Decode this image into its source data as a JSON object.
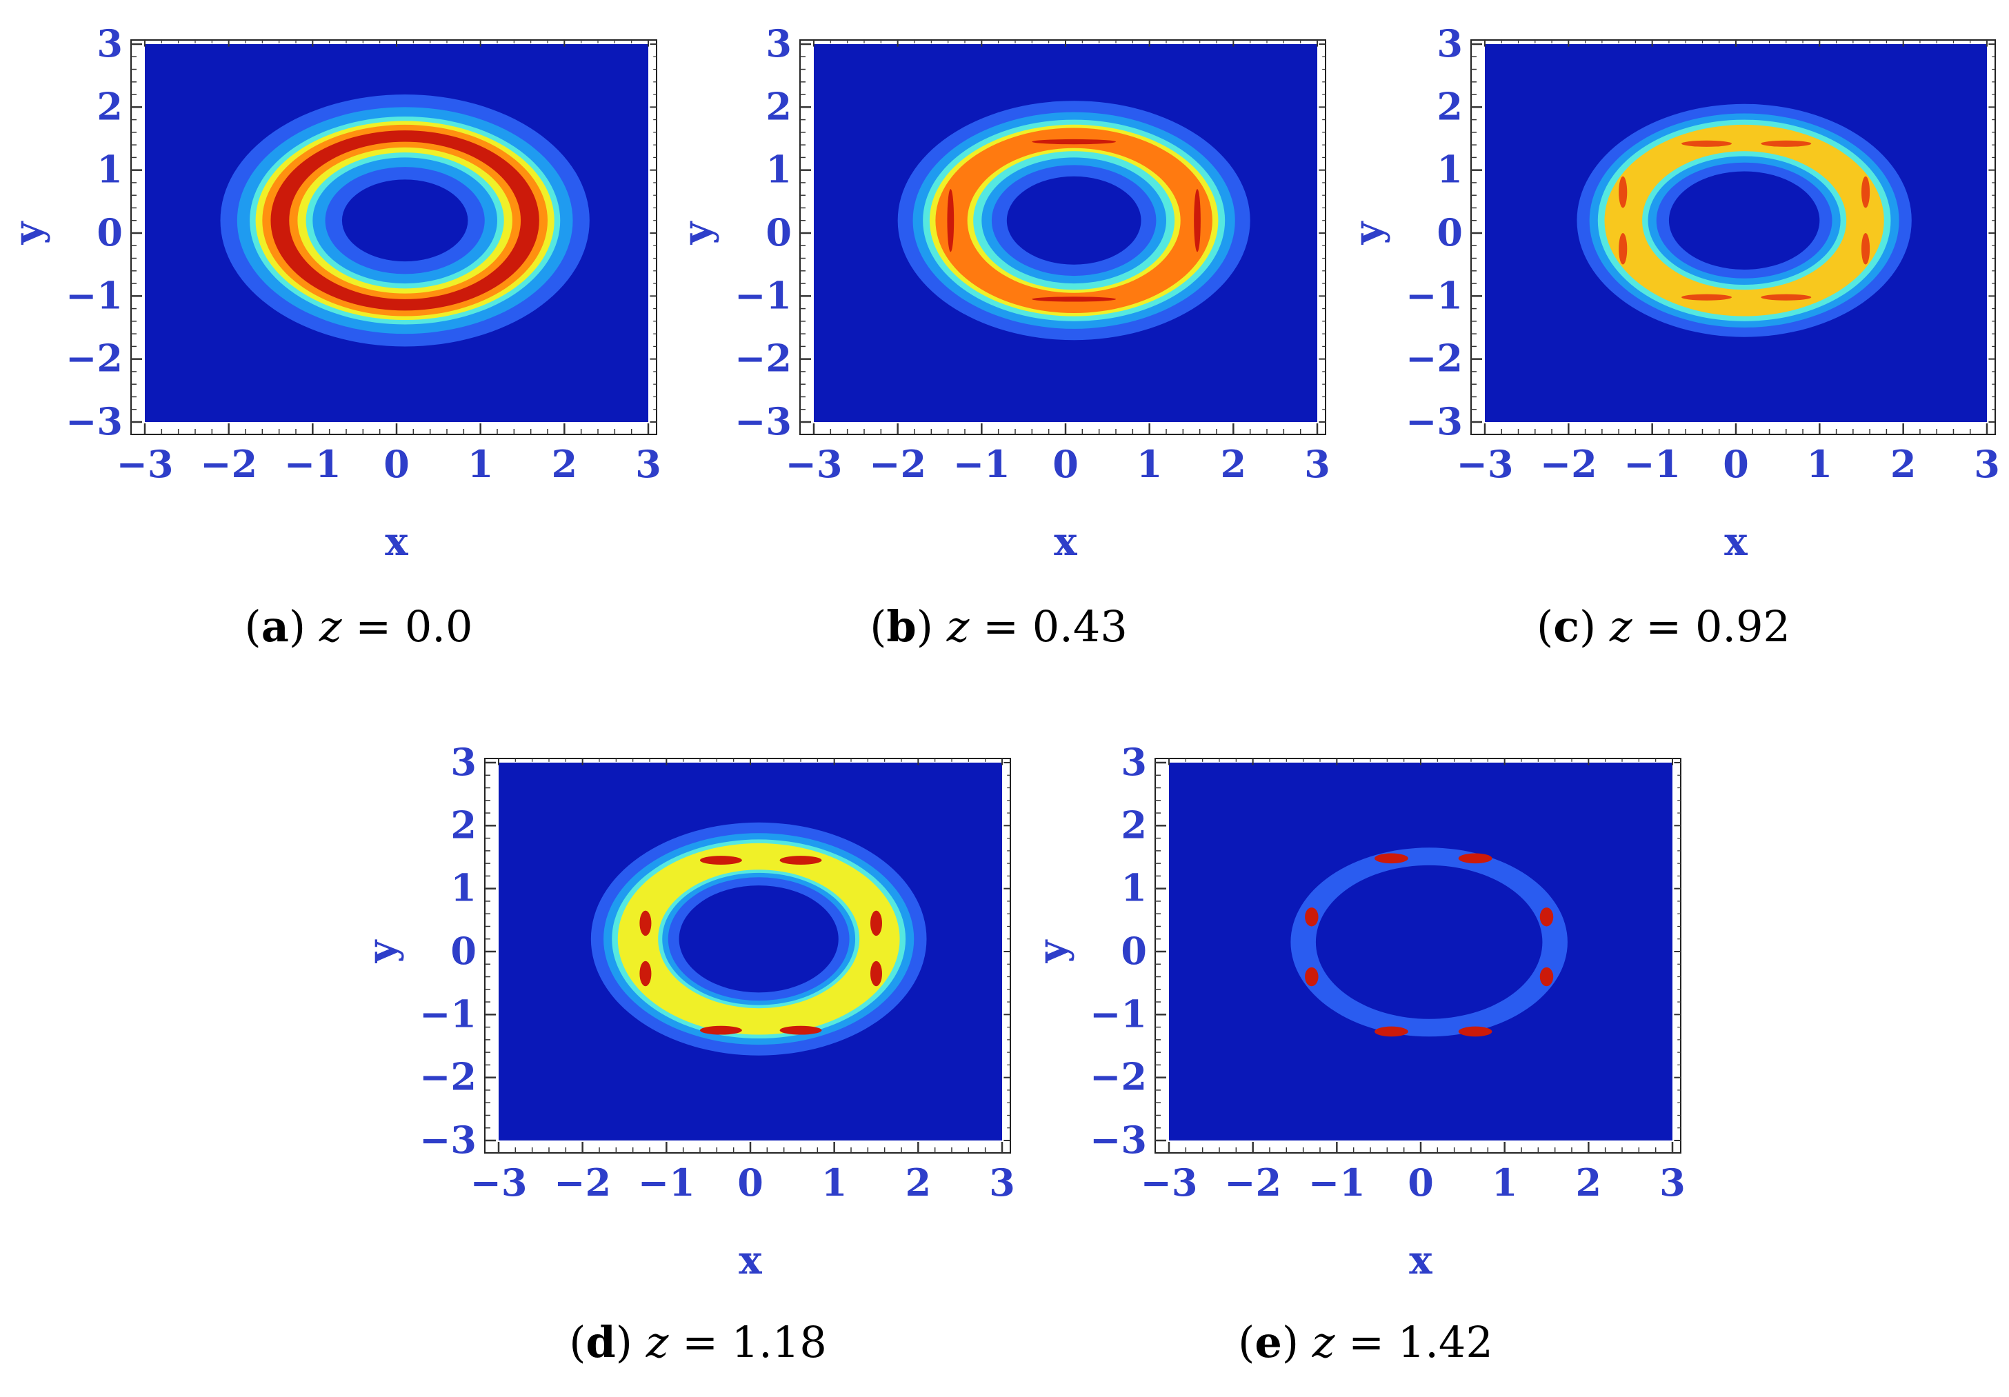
{
  "chart_data": [
    {
      "id": "a",
      "type": "heatmap",
      "subtype": "contour",
      "caption_letter": "a",
      "caption_var": "z",
      "caption_value": "0.0",
      "xlabel": "x",
      "ylabel": "y",
      "xlim": [
        -3,
        3
      ],
      "ylim": [
        -3,
        3
      ],
      "xticks": [
        "−3",
        "−2",
        "−1",
        "0",
        "1",
        "2",
        "3"
      ],
      "yticks": [
        "3",
        "2",
        "1",
        "0",
        "−1",
        "−2",
        "−3"
      ],
      "background_color": "#0a18b8",
      "ring": {
        "center": [
          0.1,
          0.2
        ],
        "outer_radii": [
          2.2,
          2.0
        ],
        "inner_radii": [
          0.75,
          0.65
        ]
      },
      "bands": [
        {
          "color": "#2a5cf0",
          "rx": [
            2.2,
            0.75
          ],
          "ry": [
            2.0,
            0.65
          ]
        },
        {
          "color": "#1f9bf0",
          "rx": [
            2.0,
            0.95
          ],
          "ry": [
            1.8,
            0.85
          ]
        },
        {
          "color": "#55e8e0",
          "rx": [
            1.85,
            1.1
          ],
          "ry": [
            1.65,
            1.0
          ]
        },
        {
          "color": "#f0f028",
          "rx": [
            1.78,
            1.18
          ],
          "ry": [
            1.58,
            1.08
          ]
        },
        {
          "color": "#ff9010",
          "rx": [
            1.7,
            1.28
          ],
          "ry": [
            1.52,
            1.16
          ]
        },
        {
          "color": "#cc1a0a",
          "rx": [
            1.6,
            1.38
          ],
          "ry": [
            1.43,
            1.25
          ]
        }
      ],
      "hotspots": []
    },
    {
      "id": "b",
      "type": "heatmap",
      "subtype": "contour",
      "caption_letter": "b",
      "caption_var": "z",
      "caption_value": "0.43",
      "xlabel": "x",
      "ylabel": "y",
      "xlim": [
        -3,
        3
      ],
      "ylim": [
        -3,
        3
      ],
      "xticks": [
        "−3",
        "−2",
        "−1",
        "0",
        "1",
        "2",
        "3"
      ],
      "yticks": [
        "3",
        "2",
        "1",
        "0",
        "−1",
        "−2",
        "−3"
      ],
      "background_color": "#0a18b8",
      "ring": {
        "center": [
          0.1,
          0.2
        ],
        "outer_radii": [
          2.1,
          1.9
        ],
        "inner_radii": [
          0.8,
          0.7
        ]
      },
      "bands": [
        {
          "color": "#2a5cf0",
          "rx": [
            2.1,
            0.8
          ],
          "ry": [
            1.9,
            0.7
          ]
        },
        {
          "color": "#1f9bf0",
          "rx": [
            1.92,
            0.98
          ],
          "ry": [
            1.72,
            0.88
          ]
        },
        {
          "color": "#55e8e0",
          "rx": [
            1.8,
            1.1
          ],
          "ry": [
            1.6,
            1.0
          ]
        },
        {
          "color": "#f0f028",
          "rx": [
            1.72,
            1.2
          ],
          "ry": [
            1.52,
            1.1
          ]
        },
        {
          "color": "#ff7a10",
          "rx": [
            1.65,
            1.27
          ],
          "ry": [
            1.47,
            1.15
          ]
        }
      ],
      "hotspots": [
        {
          "x": 0.1,
          "y": 1.45,
          "rx": 0.5,
          "ry": 0.04,
          "color": "#cc1a0a"
        },
        {
          "x": 0.1,
          "y": -1.05,
          "rx": 0.5,
          "ry": 0.04,
          "color": "#cc1a0a"
        },
        {
          "x": -1.37,
          "y": 0.2,
          "rx": 0.04,
          "ry": 0.5,
          "color": "#cc1a0a"
        },
        {
          "x": 1.57,
          "y": 0.2,
          "rx": 0.04,
          "ry": 0.5,
          "color": "#cc1a0a"
        }
      ]
    },
    {
      "id": "c",
      "type": "heatmap",
      "subtype": "contour",
      "caption_letter": "c",
      "caption_var": "z",
      "caption_value": "0.92",
      "xlabel": "x",
      "ylabel": "y",
      "xlim": [
        -3,
        3
      ],
      "ylim": [
        -3,
        3
      ],
      "xticks": [
        "−3",
        "−2",
        "−1",
        "0",
        "1",
        "2",
        "3"
      ],
      "yticks": [
        "3",
        "2",
        "1",
        "0",
        "−1",
        "−2",
        "−3"
      ],
      "background_color": "#0a18b8",
      "ring": {
        "center": [
          0.1,
          0.2
        ],
        "outer_radii": [
          2.0,
          1.85
        ],
        "inner_radii": [
          0.9,
          0.78
        ]
      },
      "bands": [
        {
          "color": "#2a5cf0",
          "rx": [
            2.0,
            0.9
          ],
          "ry": [
            1.85,
            0.78
          ]
        },
        {
          "color": "#1f9bf0",
          "rx": [
            1.85,
            1.05
          ],
          "ry": [
            1.7,
            0.92
          ]
        },
        {
          "color": "#55e8e0",
          "rx": [
            1.75,
            1.15
          ],
          "ry": [
            1.6,
            1.02
          ]
        },
        {
          "color": "#f8c81e",
          "rx": [
            1.67,
            1.22
          ],
          "ry": [
            1.52,
            1.1
          ]
        }
      ],
      "hotspots": [
        {
          "x": -0.35,
          "y": 1.42,
          "rx": 0.3,
          "ry": 0.05,
          "color": "#e84a10"
        },
        {
          "x": 0.6,
          "y": 1.42,
          "rx": 0.3,
          "ry": 0.05,
          "color": "#e84a10"
        },
        {
          "x": -0.35,
          "y": -1.02,
          "rx": 0.3,
          "ry": 0.05,
          "color": "#e84a10"
        },
        {
          "x": 0.6,
          "y": -1.02,
          "rx": 0.3,
          "ry": 0.05,
          "color": "#e84a10"
        },
        {
          "x": -1.35,
          "y": 0.65,
          "rx": 0.05,
          "ry": 0.25,
          "color": "#e84a10"
        },
        {
          "x": -1.35,
          "y": -0.25,
          "rx": 0.05,
          "ry": 0.25,
          "color": "#e84a10"
        },
        {
          "x": 1.55,
          "y": 0.65,
          "rx": 0.05,
          "ry": 0.25,
          "color": "#e84a10"
        },
        {
          "x": 1.55,
          "y": -0.25,
          "rx": 0.05,
          "ry": 0.25,
          "color": "#e84a10"
        }
      ]
    },
    {
      "id": "d",
      "type": "heatmap",
      "subtype": "contour",
      "caption_letter": "d",
      "caption_var": "z",
      "caption_value": "1.18",
      "xlabel": "x",
      "ylabel": "y",
      "xlim": [
        -3,
        3
      ],
      "ylim": [
        -3,
        3
      ],
      "xticks": [
        "−3",
        "−2",
        "−1",
        "0",
        "1",
        "2",
        "3"
      ],
      "yticks": [
        "3",
        "2",
        "1",
        "0",
        "−1",
        "−2",
        "−3"
      ],
      "background_color": "#0a18b8",
      "ring": {
        "center": [
          0.1,
          0.2
        ],
        "outer_radii": [
          2.0,
          1.85
        ],
        "inner_radii": [
          0.95,
          0.85
        ]
      },
      "bands": [
        {
          "color": "#2a5cf0",
          "rx": [
            2.0,
            0.95
          ],
          "ry": [
            1.85,
            0.85
          ]
        },
        {
          "color": "#1f9bf0",
          "rx": [
            1.85,
            1.08
          ],
          "ry": [
            1.68,
            0.98
          ]
        },
        {
          "color": "#55e8e0",
          "rx": [
            1.75,
            1.15
          ],
          "ry": [
            1.58,
            1.05
          ]
        },
        {
          "color": "#f0f028",
          "rx": [
            1.68,
            1.2
          ],
          "ry": [
            1.52,
            1.1
          ]
        }
      ],
      "hotspots": [
        {
          "x": -0.35,
          "y": 1.45,
          "rx": 0.25,
          "ry": 0.07,
          "color": "#cc1a0a"
        },
        {
          "x": 0.6,
          "y": 1.45,
          "rx": 0.25,
          "ry": 0.07,
          "color": "#cc1a0a"
        },
        {
          "x": -0.35,
          "y": -1.25,
          "rx": 0.25,
          "ry": 0.07,
          "color": "#cc1a0a"
        },
        {
          "x": 0.6,
          "y": -1.25,
          "rx": 0.25,
          "ry": 0.07,
          "color": "#cc1a0a"
        },
        {
          "x": -1.25,
          "y": 0.45,
          "rx": 0.07,
          "ry": 0.2,
          "color": "#cc1a0a"
        },
        {
          "x": -1.25,
          "y": -0.35,
          "rx": 0.07,
          "ry": 0.2,
          "color": "#cc1a0a"
        },
        {
          "x": 1.5,
          "y": 0.45,
          "rx": 0.07,
          "ry": 0.2,
          "color": "#cc1a0a"
        },
        {
          "x": 1.5,
          "y": -0.35,
          "rx": 0.07,
          "ry": 0.2,
          "color": "#cc1a0a"
        }
      ]
    },
    {
      "id": "e",
      "type": "heatmap",
      "subtype": "contour",
      "caption_letter": "e",
      "caption_var": "z",
      "caption_value": "1.42",
      "xlabel": "x",
      "ylabel": "y",
      "xlim": [
        -3,
        3
      ],
      "ylim": [
        -3,
        3
      ],
      "xticks": [
        "−3",
        "−2",
        "−1",
        "0",
        "1",
        "2",
        "3"
      ],
      "yticks": [
        "3",
        "2",
        "1",
        "0",
        "−1",
        "−2",
        "−3"
      ],
      "background_color": "#0a18b8",
      "ring": {
        "center": [
          0.1,
          0.15
        ],
        "outer_radii": [
          1.65,
          1.5
        ],
        "inner_radii": [
          1.35,
          1.22
        ]
      },
      "bands": [
        {
          "color": "#2a5cf0",
          "rx": [
            1.65,
            1.35
          ],
          "ry": [
            1.5,
            1.22
          ]
        }
      ],
      "hotspots": [
        {
          "x": -0.35,
          "y": 1.48,
          "rx": 0.2,
          "ry": 0.08,
          "color": "#cc1a0a"
        },
        {
          "x": 0.65,
          "y": 1.48,
          "rx": 0.2,
          "ry": 0.08,
          "color": "#cc1a0a"
        },
        {
          "x": -0.35,
          "y": -1.27,
          "rx": 0.2,
          "ry": 0.08,
          "color": "#cc1a0a"
        },
        {
          "x": 0.65,
          "y": -1.27,
          "rx": 0.2,
          "ry": 0.08,
          "color": "#cc1a0a"
        },
        {
          "x": -1.3,
          "y": 0.55,
          "rx": 0.08,
          "ry": 0.15,
          "color": "#cc1a0a"
        },
        {
          "x": -1.3,
          "y": -0.4,
          "rx": 0.08,
          "ry": 0.15,
          "color": "#cc1a0a"
        },
        {
          "x": 1.5,
          "y": 0.55,
          "rx": 0.08,
          "ry": 0.15,
          "color": "#cc1a0a"
        },
        {
          "x": 1.5,
          "y": -0.4,
          "rx": 0.08,
          "ry": 0.15,
          "color": "#cc1a0a"
        }
      ]
    }
  ]
}
